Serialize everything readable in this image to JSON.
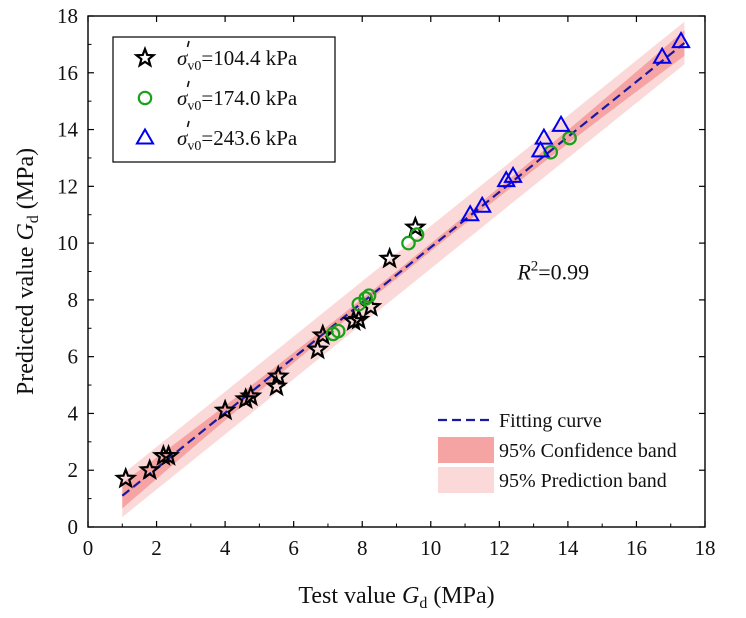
{
  "chart_data": {
    "type": "scatter",
    "xlabel": {
      "prefix": "Test value ",
      "symbol": "G",
      "sub": "d",
      "suffix": " (MPa)"
    },
    "ylabel": {
      "prefix": "Predicted value ",
      "symbol": "G",
      "sub": "d",
      "suffix": " (MPa)"
    },
    "xlim": [
      0,
      18
    ],
    "ylim": [
      0,
      18
    ],
    "x_ticks": [
      "0",
      "2",
      "4",
      "6",
      "8",
      "10",
      "12",
      "14",
      "16",
      "18"
    ],
    "y_ticks": [
      "0",
      "2",
      "4",
      "6",
      "8",
      "10",
      "12",
      "14",
      "16",
      "18"
    ],
    "grid": false,
    "legend_position": "top-left",
    "annotation": {
      "symbol": "R",
      "sup": "2",
      "value": "=0.99",
      "x": 13.4,
      "y": 9.0
    },
    "series": [
      {
        "name": "=104.4 kPa",
        "marker": "star",
        "color": "#000000",
        "points": [
          [
            1.1,
            1.7
          ],
          [
            1.8,
            2.0
          ],
          [
            2.2,
            2.5
          ],
          [
            2.35,
            2.5
          ],
          [
            4.0,
            4.1
          ],
          [
            4.6,
            4.5
          ],
          [
            4.75,
            4.6
          ],
          [
            5.5,
            4.95
          ],
          [
            5.55,
            5.3
          ],
          [
            6.7,
            6.25
          ],
          [
            6.85,
            6.75
          ],
          [
            7.75,
            7.25
          ],
          [
            7.9,
            7.3
          ],
          [
            8.25,
            7.75
          ],
          [
            8.8,
            9.45
          ],
          [
            9.55,
            10.55
          ]
        ]
      },
      {
        "name": "=174.0 kPa",
        "marker": "circle",
        "color": "#1aa01a",
        "points": [
          [
            7.15,
            6.8
          ],
          [
            7.3,
            6.9
          ],
          [
            7.9,
            7.85
          ],
          [
            8.1,
            8.05
          ],
          [
            8.2,
            8.15
          ],
          [
            9.35,
            10.0
          ],
          [
            9.6,
            10.3
          ],
          [
            13.5,
            13.2
          ],
          [
            14.05,
            13.7
          ]
        ]
      },
      {
        "name": "=243.6 kPa",
        "marker": "triangle",
        "color": "#0000ee",
        "points": [
          [
            11.15,
            11.0
          ],
          [
            11.5,
            11.3
          ],
          [
            12.2,
            12.2
          ],
          [
            12.4,
            12.35
          ],
          [
            13.2,
            13.25
          ],
          [
            13.3,
            13.7
          ],
          [
            13.8,
            14.15
          ],
          [
            16.75,
            16.55
          ],
          [
            17.3,
            17.1
          ]
        ]
      }
    ],
    "fit": {
      "label": "Fitting curve",
      "color": "#1a1aa0",
      "x": [
        1.0,
        17.4
      ],
      "y": [
        1.1,
        17.05
      ]
    },
    "confidence_band": {
      "label": "95% Confidence band",
      "color": "#f5a3a3",
      "halfwidth_ends": 0.45,
      "halfwidth_mid": 0.13
    },
    "prediction_band": {
      "label": "95% Prediction band",
      "color": "#fcd9d9",
      "halfwidth": 0.75
    },
    "legend_symbol": {
      "base": "σ",
      "sub": "v0"
    }
  }
}
